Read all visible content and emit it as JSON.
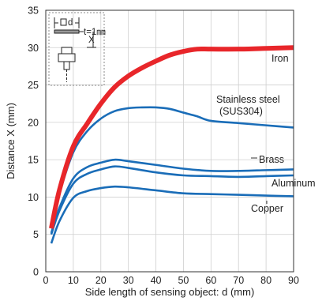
{
  "chart_data": {
    "type": "line",
    "xlabel": "Side length of sensing object: d (mm)",
    "ylabel": "Distance X (mm)",
    "xlim": [
      0,
      90
    ],
    "ylim": [
      0,
      35
    ],
    "xticks": [
      0,
      10,
      20,
      30,
      40,
      50,
      60,
      70,
      80,
      90
    ],
    "yticks": [
      0,
      5,
      10,
      15,
      20,
      25,
      30,
      35
    ],
    "grid": true,
    "inset": {
      "d_label": "d",
      "x_label": "X",
      "t_label": "t=1㎜"
    },
    "series": [
      {
        "name": "Iron",
        "color": "#e8262a",
        "x": [
          2,
          5,
          10,
          15,
          20,
          25,
          30,
          35,
          40,
          45,
          50,
          55,
          60,
          70,
          80,
          90
        ],
        "y": [
          5.8,
          11,
          16.8,
          19.8,
          22.5,
          24.7,
          26.2,
          27.3,
          28.2,
          29,
          29.5,
          29.8,
          29.8,
          29.8,
          29.9,
          30
        ]
      },
      {
        "name": "Stainless steel\n(SUS304)",
        "color": "#1a6db8",
        "x": [
          2,
          5,
          10,
          15,
          20,
          25,
          30,
          35,
          40,
          45,
          50,
          55,
          60,
          70,
          80,
          90
        ],
        "y": [
          5.8,
          10.5,
          16,
          18.8,
          20.5,
          21.5,
          21.9,
          22,
          22,
          21.8,
          21.3,
          20.8,
          20.2,
          19.9,
          19.6,
          19.3
        ]
      },
      {
        "name": "Brass",
        "color": "#1a6db8",
        "x": [
          2,
          5,
          10,
          15,
          20,
          25,
          30,
          40,
          50,
          60,
          70,
          80,
          90
        ],
        "y": [
          5.2,
          8.6,
          12.5,
          14,
          14.6,
          15,
          14.8,
          14.3,
          13.8,
          13.5,
          13.5,
          13.6,
          13.7
        ]
      },
      {
        "name": "Aluminum",
        "color": "#1a6db8",
        "x": [
          2,
          5,
          10,
          15,
          20,
          25,
          30,
          40,
          50,
          60,
          70,
          80,
          90
        ],
        "y": [
          5,
          8.2,
          11.8,
          13.1,
          13.7,
          14.1,
          13.9,
          13.3,
          12.9,
          12.8,
          12.7,
          12.8,
          12.9
        ]
      },
      {
        "name": "Copper",
        "color": "#1a6db8",
        "x": [
          2,
          5,
          10,
          15,
          20,
          25,
          30,
          40,
          50,
          60,
          70,
          80,
          90
        ],
        "y": [
          3.8,
          6.8,
          9.9,
          10.8,
          11.2,
          11.4,
          11.3,
          10.9,
          10.5,
          10.4,
          10.3,
          10.2,
          10.1
        ]
      }
    ]
  }
}
